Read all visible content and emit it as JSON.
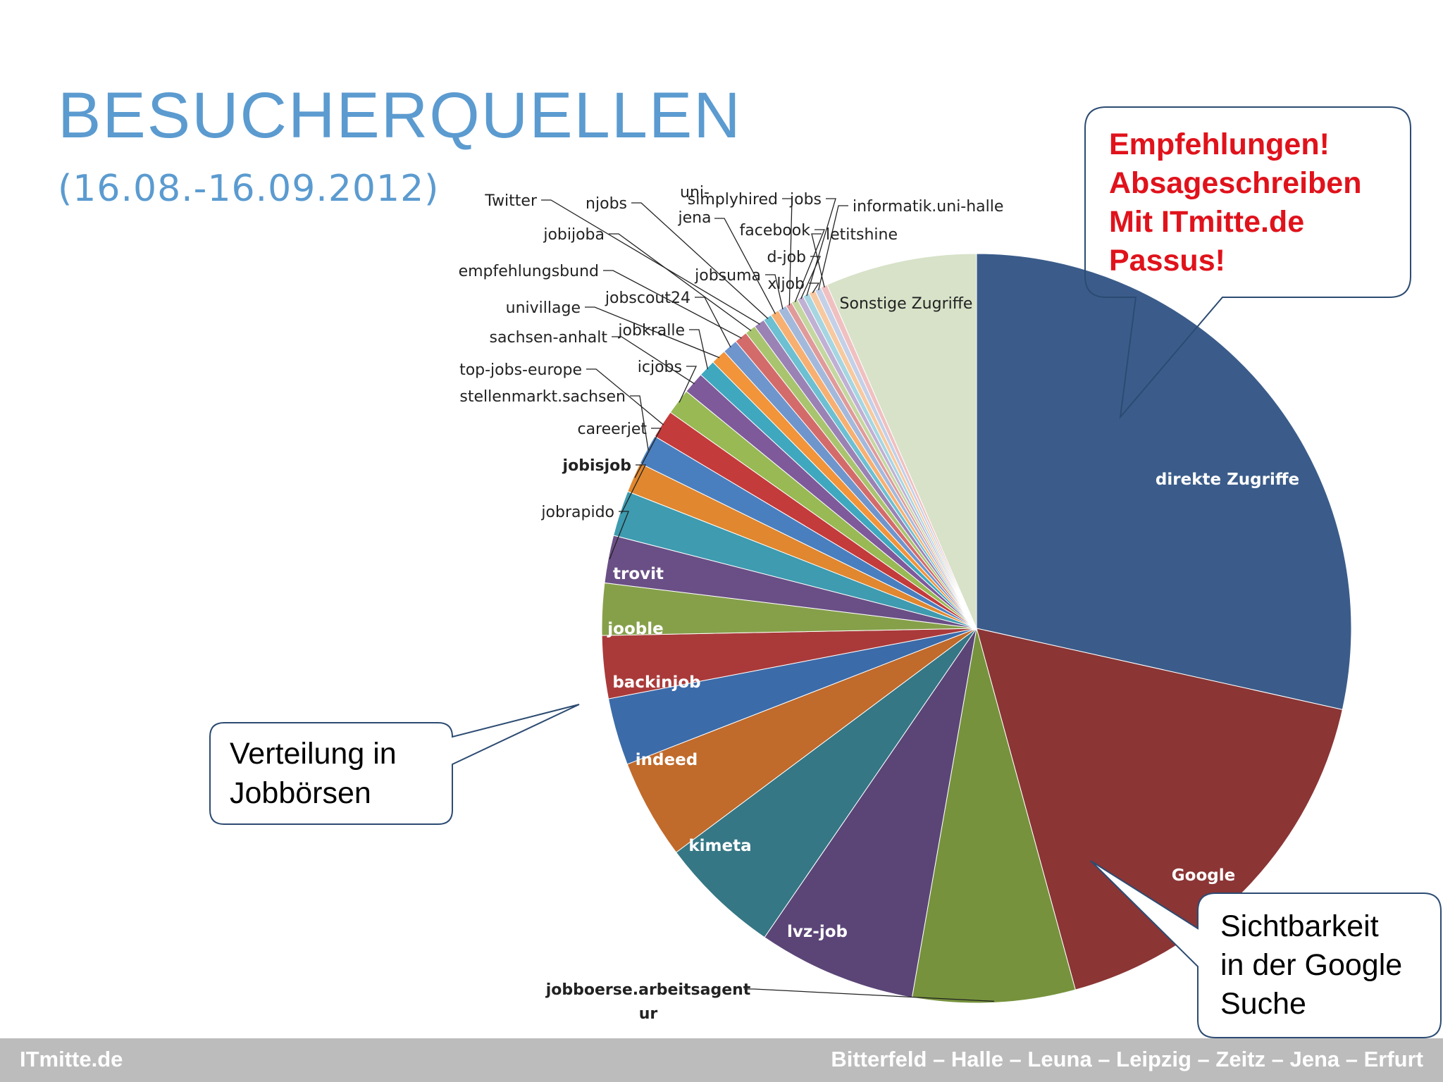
{
  "slide": {
    "title": "BESUCHERQUELLEN",
    "subtitle": "(16.08.-16.09.2012)"
  },
  "callouts": {
    "recommend": [
      "Empfehlungen!",
      "Absageschreiben",
      "Mit ITmitte.de",
      "Passus!"
    ],
    "jobboards": [
      "Verteilung in",
      "Jobbörsen"
    ],
    "google": [
      "Sichtbarkeit",
      "in der Google",
      "Suche"
    ]
  },
  "footer": {
    "brand": "ITmitte.de",
    "locations": "Bitterfeld – Halle – Leuna – Leipzig – Zeitz – Jena – Erfurt"
  },
  "chart_data": {
    "type": "pie",
    "title": "",
    "start": "12 o'clock, clockwise",
    "slices": [
      {
        "label": "direkte Zugriffe",
        "value": 30.5,
        "color": "#3b5c8a",
        "label_placement": "inside"
      },
      {
        "label": "Google",
        "value": 18.5,
        "color": "#8b3535",
        "label_placement": "inside"
      },
      {
        "label": "jobboerse.arbeitsagentur",
        "value": 7.5,
        "color": "#76923c",
        "label_placement": "outside"
      },
      {
        "label": "lvz-job",
        "value": 7.3,
        "color": "#5b4577",
        "label_placement": "inside"
      },
      {
        "label": "kimeta",
        "value": 5.6,
        "color": "#357785",
        "label_placement": "inside"
      },
      {
        "label": "indeed",
        "value": 4.6,
        "color": "#c06a2b",
        "label_placement": "inside"
      },
      {
        "label": "backinjob",
        "value": 3.1,
        "color": "#3c6ba9",
        "label_placement": "inside"
      },
      {
        "label": "jooble",
        "value": 2.9,
        "color": "#aa3a3a",
        "label_placement": "inside"
      },
      {
        "label": "trovit",
        "value": 2.4,
        "color": "#86a04a",
        "label_placement": "inside"
      },
      {
        "label": "jobrapido",
        "value": 2.2,
        "color": "#6a4f86",
        "label_placement": "outside"
      },
      {
        "label": "jobisjob",
        "value": 2.1,
        "color": "#3e9bb0",
        "label_placement": "outside"
      },
      {
        "label": "careerjet",
        "value": 1.4,
        "color": "#e0872f",
        "label_placement": "outside"
      },
      {
        "label": "stellenmarkt.sachsen",
        "value": 1.4,
        "color": "#4a7fbf",
        "label_placement": "outside"
      },
      {
        "label": "top-jobs-europe",
        "value": 1.3,
        "color": "#c43b3b",
        "label_placement": "outside"
      },
      {
        "label": "icjobs",
        "value": 1.2,
        "color": "#98b954",
        "label_placement": "outside"
      },
      {
        "label": "sachsen-anhalt",
        "value": 1.0,
        "color": "#7e5a9b",
        "label_placement": "outside"
      },
      {
        "label": "jobkralle",
        "value": 0.8,
        "color": "#3fa8bf",
        "label_placement": "outside"
      },
      {
        "label": "univillage",
        "value": 0.7,
        "color": "#f29439",
        "label_placement": "outside"
      },
      {
        "label": "jobscout24",
        "value": 0.7,
        "color": "#6f95cd",
        "label_placement": "outside"
      },
      {
        "label": "empfehlungsbund",
        "value": 0.6,
        "color": "#d46b6b",
        "label_placement": "outside"
      },
      {
        "label": "jobijoba",
        "value": 0.5,
        "color": "#a9c46e",
        "label_placement": "outside"
      },
      {
        "label": "Twitter",
        "value": 0.5,
        "color": "#9a82b5",
        "label_placement": "outside"
      },
      {
        "label": "njobs",
        "value": 0.4,
        "color": "#6cc0d2",
        "label_placement": "outside"
      },
      {
        "label": "uni-jena",
        "value": 0.4,
        "color": "#f7b071",
        "label_placement": "outside"
      },
      {
        "label": "jobsuma",
        "value": 0.4,
        "color": "#a3b9dc",
        "label_placement": "outside"
      },
      {
        "label": "simplyhired",
        "value": 0.3,
        "color": "#e09a9a",
        "label_placement": "outside"
      },
      {
        "label": "facebook",
        "value": 0.3,
        "color": "#c5d7a0",
        "label_placement": "outside"
      },
      {
        "label": "d-job",
        "value": 0.3,
        "color": "#c0b0d4",
        "label_placement": "outside"
      },
      {
        "label": "jobs",
        "value": 0.3,
        "color": "#a5d6e2",
        "label_placement": "outside"
      },
      {
        "label": "xljob",
        "value": 0.3,
        "color": "#f7c9a0",
        "label_placement": "outside"
      },
      {
        "label": "informatik.uni-halle",
        "value": 0.3,
        "color": "#c3d0e8",
        "label_placement": "outside"
      },
      {
        "label": "letitshine",
        "value": 0.3,
        "color": "#f0c0c0",
        "label_placement": "outside"
      },
      {
        "label": "Sonstige Zugriffe",
        "value": 7.0,
        "color": "#d7e2c8",
        "label_placement": "inside"
      }
    ]
  }
}
